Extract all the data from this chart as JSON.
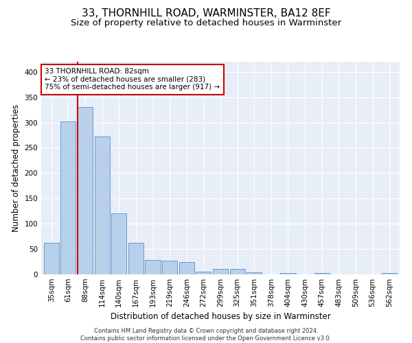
{
  "title": "33, THORNHILL ROAD, WARMINSTER, BA12 8EF",
  "subtitle": "Size of property relative to detached houses in Warminster",
  "xlabel": "Distribution of detached houses by size in Warminster",
  "ylabel": "Number of detached properties",
  "footnote": "Contains HM Land Registry data © Crown copyright and database right 2024.\nContains public sector information licensed under the Open Government Licence v3.0.",
  "bar_labels": [
    "35sqm",
    "61sqm",
    "88sqm",
    "114sqm",
    "140sqm",
    "167sqm",
    "193sqm",
    "219sqm",
    "246sqm",
    "272sqm",
    "299sqm",
    "325sqm",
    "351sqm",
    "378sqm",
    "404sqm",
    "430sqm",
    "457sqm",
    "483sqm",
    "509sqm",
    "536sqm",
    "562sqm"
  ],
  "bar_values": [
    62,
    302,
    330,
    272,
    120,
    63,
    28,
    27,
    24,
    6,
    11,
    11,
    4,
    0,
    3,
    0,
    3,
    0,
    0,
    0,
    3
  ],
  "bar_color": "#b8d0ea",
  "bar_edge_color": "#6699cc",
  "annotation_title": "33 THORNHILL ROAD: 82sqm",
  "annotation_line1": "← 23% of detached houses are smaller (283)",
  "annotation_line2": "75% of semi-detached houses are larger (917) →",
  "annotation_box_color": "#ffffff",
  "annotation_box_edge": "#cc0000",
  "vline_color": "#cc0000",
  "vline_x": 1.57,
  "ylim": [
    0,
    420
  ],
  "yticks": [
    0,
    50,
    100,
    150,
    200,
    250,
    300,
    350,
    400
  ],
  "background_color": "#e8eef8",
  "grid_color": "#ffffff",
  "title_fontsize": 11,
  "subtitle_fontsize": 9.5,
  "ylabel_fontsize": 8.5,
  "xlabel_fontsize": 8.5,
  "tick_fontsize": 7.5,
  "annotation_fontsize": 7.5,
  "footnote_fontsize": 6
}
